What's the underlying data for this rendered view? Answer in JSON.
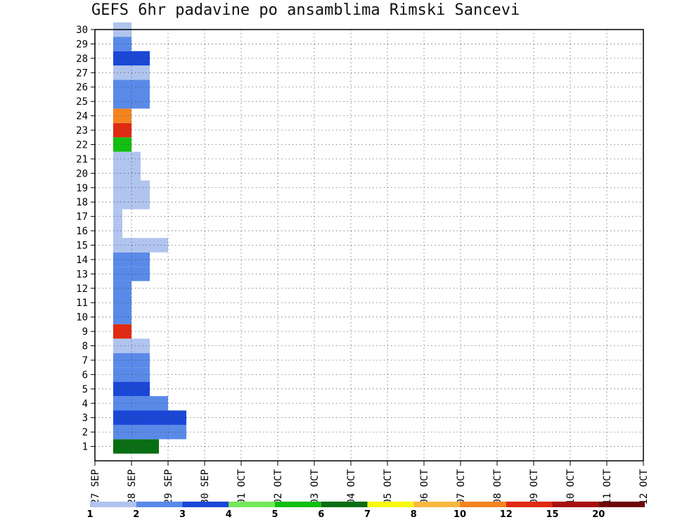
{
  "chart_data": {
    "type": "heatmap",
    "title": "GEFS 6hr padavine po ansamblima Rimski Sancevi",
    "x_ticks": [
      "27 SEP",
      "28 SEP",
      "29 SEP",
      "30 SEP",
      "01 OCT",
      "02 OCT",
      "03 OCT",
      "04 OCT",
      "05 OCT",
      "06 OCT",
      "07 OCT",
      "08 OCT",
      "09 OCT",
      "10 OCT",
      "11 OCT",
      "12 OCT"
    ],
    "y_ticks": [
      "1",
      "2",
      "3",
      "4",
      "5",
      "6",
      "7",
      "8",
      "9",
      "10",
      "11",
      "12",
      "13",
      "14",
      "15",
      "16",
      "17",
      "18",
      "19",
      "20",
      "21",
      "22",
      "23",
      "24",
      "25",
      "26",
      "27",
      "28",
      "29",
      "30"
    ],
    "x_range_days": [
      0,
      15
    ],
    "y_range": [
      0,
      30
    ],
    "grid": true,
    "levels": [
      "1",
      "2",
      "3",
      "4",
      "5",
      "6",
      "7",
      "8",
      "10",
      "12",
      "15",
      "20"
    ],
    "colors": [
      "#b0c4ee",
      "#5a8ae8",
      "#1a47d6",
      "#74e85a",
      "#10bf10",
      "#0a6e14",
      "#f8f810",
      "#f8b840",
      "#f48420",
      "#e02a12",
      "#a81010",
      "#6e0808"
    ],
    "cells": [
      [
        1,
        2,
        5,
        6
      ],
      [
        2,
        2,
        8,
        2
      ],
      [
        3,
        2,
        8,
        3
      ],
      [
        4,
        2,
        6,
        2
      ],
      [
        5,
        2,
        4,
        3
      ],
      [
        6,
        2,
        4,
        2
      ],
      [
        7,
        2,
        4,
        2
      ],
      [
        8,
        2,
        4,
        1
      ],
      [
        9,
        2,
        2,
        10
      ],
      [
        10,
        2,
        2,
        2
      ],
      [
        11,
        2,
        2,
        2
      ],
      [
        12,
        2,
        2,
        2
      ],
      [
        13,
        2,
        4,
        2
      ],
      [
        14,
        2,
        4,
        2
      ],
      [
        15,
        2,
        6,
        1
      ],
      [
        16,
        2,
        1,
        1
      ],
      [
        17,
        2,
        1,
        1
      ],
      [
        18,
        2,
        4,
        1
      ],
      [
        19,
        2,
        4,
        1
      ],
      [
        20,
        2,
        3,
        1
      ],
      [
        21,
        2,
        3,
        1
      ],
      [
        22,
        2,
        2,
        5
      ],
      [
        23,
        2,
        2,
        10
      ],
      [
        24,
        2,
        2,
        9
      ],
      [
        25,
        2,
        4,
        2
      ],
      [
        26,
        2,
        4,
        2
      ],
      [
        27,
        2,
        4,
        1
      ],
      [
        28,
        2,
        4,
        3
      ],
      [
        29,
        2,
        2,
        2
      ],
      [
        30,
        2,
        2,
        1
      ]
    ]
  }
}
